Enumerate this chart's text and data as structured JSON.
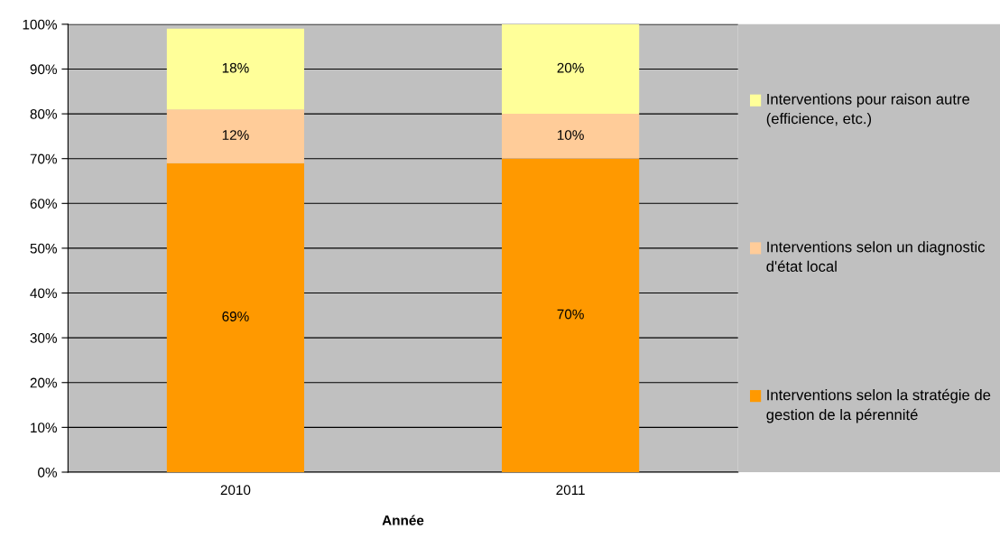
{
  "chart_data": {
    "type": "bar",
    "stacked": true,
    "xlabel": "Année",
    "categories": [
      "2010",
      "2011"
    ],
    "series": [
      {
        "name": "Interventions selon la stratégie de gestion de la pérennité",
        "color": "#ff9900",
        "values": [
          69,
          70
        ],
        "value_labels": [
          "69%",
          "70%"
        ]
      },
      {
        "name": "Interventions selon un diagnostic d'état local",
        "color": "#ffcc99",
        "values": [
          12,
          10
        ],
        "value_labels": [
          "12%",
          "10%"
        ]
      },
      {
        "name": "Interventions pour raison autre (efficience, etc.)",
        "color": "#ffff99",
        "values": [
          18,
          20
        ],
        "value_labels": [
          "18%",
          "20%"
        ]
      }
    ],
    "ylim": [
      0,
      100
    ],
    "yticks": [
      {
        "value": 0,
        "label": "0%"
      },
      {
        "value": 10,
        "label": "10%"
      },
      {
        "value": 20,
        "label": "20%"
      },
      {
        "value": 30,
        "label": "30%"
      },
      {
        "value": 40,
        "label": "40%"
      },
      {
        "value": 50,
        "label": "50%"
      },
      {
        "value": 60,
        "label": "60%"
      },
      {
        "value": 70,
        "label": "70%"
      },
      {
        "value": 80,
        "label": "80%"
      },
      {
        "value": 90,
        "label": "90%"
      },
      {
        "value": 100,
        "label": "100%"
      }
    ],
    "grid": "y",
    "legend": "right"
  }
}
